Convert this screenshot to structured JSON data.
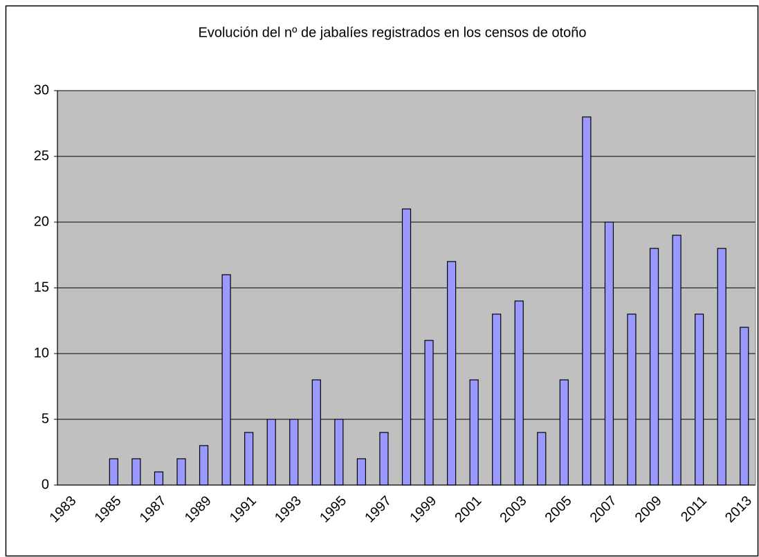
{
  "chart_data": {
    "type": "bar",
    "title": "Evolución del nº de jabalíes registrados en los censos de otoño",
    "categories": [
      "1983",
      null,
      "1985",
      null,
      "1987",
      null,
      "1989",
      null,
      "1991",
      null,
      "1993",
      null,
      "1995",
      null,
      "1997",
      null,
      "1999",
      null,
      "2001",
      null,
      "2003",
      null,
      "2005",
      null,
      "2007",
      null,
      "2009",
      null,
      "2011",
      null,
      "2013"
    ],
    "values": [
      0,
      0,
      2,
      2,
      1,
      2,
      3,
      16,
      4,
      5,
      5,
      8,
      5,
      2,
      4,
      21,
      11,
      17,
      8,
      13,
      14,
      4,
      8,
      28,
      20,
      13,
      18,
      19,
      13,
      18,
      12
    ],
    "color": "#9999ff",
    "ylim": [
      0,
      30
    ],
    "yticks": [
      0,
      5,
      10,
      15,
      20,
      25,
      30
    ],
    "grid": true
  }
}
